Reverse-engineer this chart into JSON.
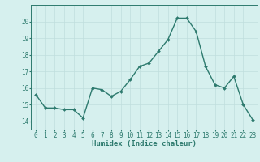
{
  "x": [
    0,
    1,
    2,
    3,
    4,
    5,
    6,
    7,
    8,
    9,
    10,
    11,
    12,
    13,
    14,
    15,
    16,
    17,
    18,
    19,
    20,
    21,
    22,
    23
  ],
  "y": [
    15.6,
    14.8,
    14.8,
    14.7,
    14.7,
    14.2,
    16.0,
    15.9,
    15.5,
    15.8,
    16.5,
    17.3,
    17.5,
    18.2,
    18.9,
    20.2,
    20.2,
    19.4,
    17.3,
    16.2,
    16.0,
    16.7,
    15.0,
    14.1
  ],
  "line_color": "#2d7a6e",
  "marker": "D",
  "markersize": 2.0,
  "linewidth": 1.0,
  "bg_color": "#d6f0ee",
  "grid_color": "#c0dedd",
  "axis_color": "#2d7a6e",
  "xlabel": "Humidex (Indice chaleur)",
  "xlabel_fontsize": 6.5,
  "tick_fontsize": 5.5,
  "ylim": [
    13.5,
    21.0
  ],
  "xlim": [
    -0.5,
    23.5
  ],
  "yticks": [
    14,
    15,
    16,
    17,
    18,
    19,
    20
  ],
  "xticks": [
    0,
    1,
    2,
    3,
    4,
    5,
    6,
    7,
    8,
    9,
    10,
    11,
    12,
    13,
    14,
    15,
    16,
    17,
    18,
    19,
    20,
    21,
    22,
    23
  ]
}
